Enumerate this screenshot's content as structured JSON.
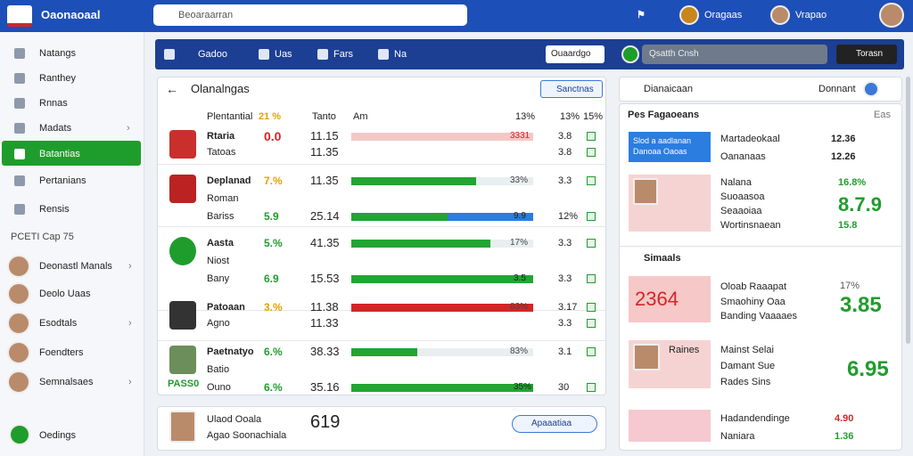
{
  "header": {
    "brand": "Oaonaoaal",
    "search": "Beoaraarran",
    "user1": "Oragaas",
    "user2": "Vrapao"
  },
  "sidebar": {
    "items": [
      "Natangs",
      "Ranthey",
      "Rnnas",
      "Madats",
      "Batantias",
      "Pertanians",
      "Rensis"
    ],
    "section": "PCETI Cap 75",
    "people": [
      "Deonastl Manals",
      "Deolo Uaas",
      "Esodtals",
      "Foendters",
      "Semnalsaes"
    ],
    "footer": "Oedings"
  },
  "toolbar": {
    "tabs": [
      "Gadoo",
      "Uas",
      "Fars",
      "Na"
    ],
    "select": "Ouaardgo",
    "pill": "Qsatth Cnsh",
    "button": "Torasn"
  },
  "standings": {
    "title": "Olanalngas",
    "button": "Sanctnas",
    "columns": [
      "Plentantial",
      "21 %",
      "Tanto",
      "Am",
      "13%",
      "13%",
      "15%"
    ],
    "rows": [
      {
        "lines": [
          "Rtaria",
          "Tatoas"
        ],
        "pct": "0.0",
        "value": "11.15",
        "value2": "11.35",
        "bar": "3331",
        "num": "3.8",
        "num2": "3.8"
      },
      {
        "lines": [
          "Deplanad",
          "Roman",
          "Bariss"
        ],
        "pct": "7.%",
        "pct2": "5.9",
        "value": "11.35",
        "value2": "25.14",
        "bar": "33%",
        "bar2": "9.9",
        "num": "3.3",
        "num2": "12%"
      },
      {
        "lines": [
          "Aasta",
          "Niost",
          "Bany"
        ],
        "pct": "5.%",
        "pct2": "6.9",
        "value": "41.35",
        "value2": "15.53",
        "bar": "17%",
        "bar2": "3.5",
        "num": "3.3",
        "num2": "3.3"
      },
      {
        "lines": [
          "Patoaan",
          "Agno"
        ],
        "pct": "3.%",
        "value": "11.38",
        "value2": "11.33",
        "bar": "83%",
        "num": "3.17",
        "num2": "3.3"
      },
      {
        "lines": [
          "Paetnatyo",
          "Batio",
          "Ouno"
        ],
        "tag": "PASS0",
        "pct": "6.%",
        "pct2": "6.%",
        "value": "38.33",
        "value2": "35.16",
        "bar": "83%",
        "bar2": "35%",
        "num": "3.1",
        "num2": "30"
      }
    ]
  },
  "featured": {
    "name": "Ulaod Ooala",
    "sub": "Agao Soonachiala",
    "score": "619",
    "button": "Apaaatiaa"
  },
  "side": {
    "search": "Dianaicaan",
    "toggle": "Donnant",
    "section1": "Pes Fagaoeans",
    "section1_right": "Eas",
    "card1": {
      "box": "Slod a aadlanan Danoaa Oaoas",
      "title": "Martadeokaal",
      "sub": "Oananaas",
      "v1": "12.36",
      "v2": "12.26"
    },
    "card2": {
      "title": "Nalana",
      "lines": [
        "Suoaasoa",
        "Seaaoiaa",
        "Wortinsnaean"
      ],
      "v1": "16.8%",
      "v2": "8.7.9",
      "v3": "15.8"
    },
    "section2": "Simaals",
    "card3": {
      "box": "2364",
      "lines": [
        "Oloab Raaapat",
        "Smaohiny Oaa",
        "Banding Vaaaaes"
      ],
      "v1": "17%",
      "v2": "3.85"
    },
    "card4": {
      "title": "Raines",
      "lines": [
        "Mainst Selai",
        "Damant Sue",
        "Rades Sins"
      ],
      "v1": "6.95"
    },
    "card5": {
      "lines": [
        "Hadandendinge",
        "Naniara"
      ],
      "v1": "4.90",
      "v2": "1.36"
    }
  }
}
